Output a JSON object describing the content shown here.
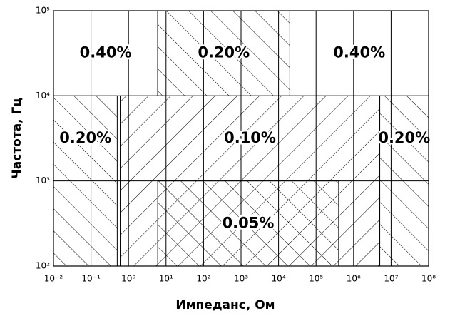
{
  "chart_data": {
    "type": "region",
    "xlabel": "Импеданс, Ом",
    "ylabel": "Частота, Гц",
    "log_x": true,
    "log_y": true,
    "grid": true,
    "xlim": [
      0.01,
      100000000
    ],
    "ylim": [
      100,
      100000
    ],
    "xticks": [
      {
        "value": 0.01,
        "label": "10⁻²"
      },
      {
        "value": 0.1,
        "label": "10⁻¹"
      },
      {
        "value": 1,
        "label": "10⁰"
      },
      {
        "value": 10,
        "label": "10¹"
      },
      {
        "value": 100,
        "label": "10²"
      },
      {
        "value": 1000,
        "label": "10³"
      },
      {
        "value": 10000,
        "label": "10⁴"
      },
      {
        "value": 100000,
        "label": "10⁵"
      },
      {
        "value": 1000000,
        "label": "10⁶"
      },
      {
        "value": 10000000,
        "label": "10⁷"
      },
      {
        "value": 100000000,
        "label": "10⁸"
      }
    ],
    "yticks": [
      {
        "value": 100,
        "label": "10²"
      },
      {
        "value": 1000,
        "label": "10³"
      },
      {
        "value": 10000,
        "label": "10⁴"
      },
      {
        "value": 100000,
        "label": "10⁵"
      }
    ],
    "regions": [
      {
        "label": "0.40%",
        "x": [
          0.01,
          6
        ],
        "y": [
          10000,
          100000
        ],
        "hatch": "none"
      },
      {
        "label": "0.20%",
        "x": [
          6,
          20000
        ],
        "y": [
          10000,
          100000
        ],
        "hatch": "back"
      },
      {
        "label": "0.40%",
        "x": [
          20000,
          100000000
        ],
        "y": [
          10000,
          100000
        ],
        "hatch": "none"
      },
      {
        "label": "0.20%",
        "x": [
          0.01,
          0.5
        ],
        "y": [
          100,
          10000
        ],
        "hatch": "back"
      },
      {
        "label": "0.10%",
        "x": [
          0.6,
          5000000
        ],
        "y": [
          100,
          10000
        ],
        "hatch": "forward"
      },
      {
        "label": "0.20%",
        "x": [
          5000000,
          100000000
        ],
        "y": [
          100,
          10000
        ],
        "hatch": "back"
      },
      {
        "label": "0.05%",
        "x": [
          6,
          400000
        ],
        "y": [
          100,
          1000
        ],
        "hatch": "cross"
      }
    ]
  }
}
